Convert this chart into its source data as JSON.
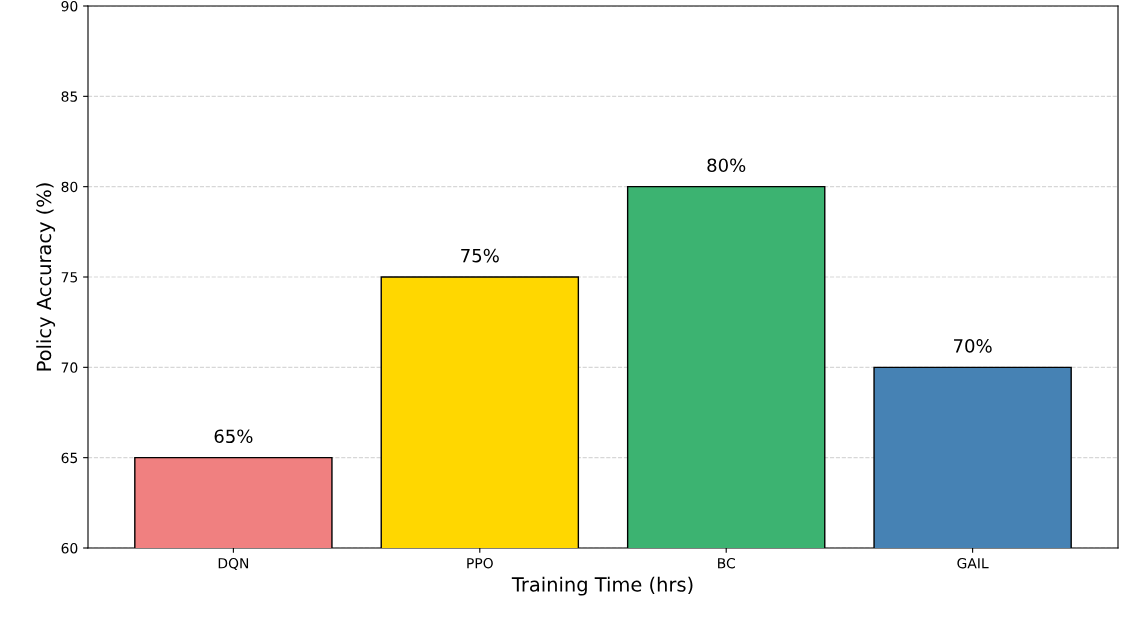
{
  "chart_data": {
    "type": "bar",
    "xlabel": "Training Time (hrs)",
    "ylabel": "Policy Accuracy (%)",
    "categories": [
      "DQN",
      "PPO",
      "BC",
      "GAIL"
    ],
    "values": [
      65,
      75,
      80,
      70
    ],
    "colors": [
      "#f08080",
      "#ffd700",
      "#3cb371",
      "#4682b4"
    ],
    "value_labels": [
      "65%",
      "75%",
      "80%",
      "70%"
    ],
    "ylim": [
      60,
      90
    ],
    "yticks": [
      60,
      65,
      70,
      75,
      80,
      85,
      90
    ],
    "grid": "y"
  }
}
